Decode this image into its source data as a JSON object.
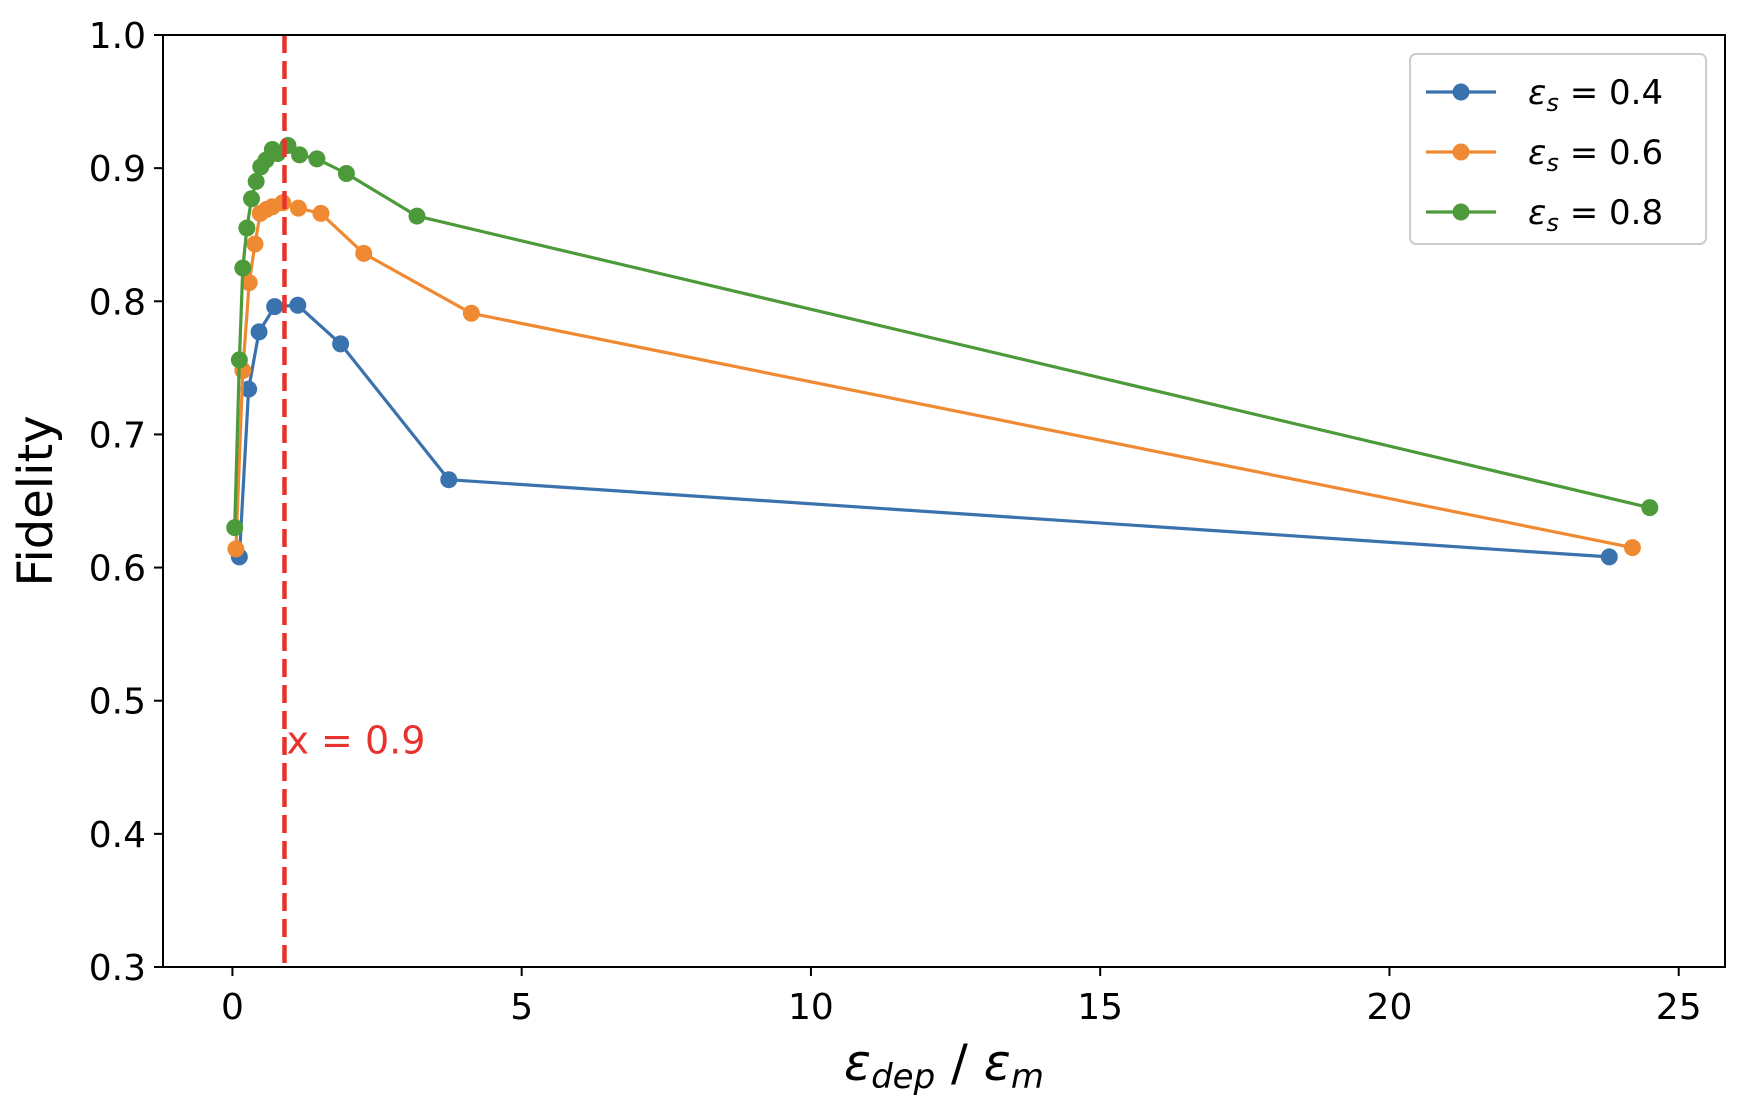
{
  "chart_data": {
    "type": "line",
    "title": "",
    "ylabel": "Fidelity",
    "xlabel": {
      "eps1": "ε",
      "sub1": "dep",
      "sep": " / ",
      "eps2": "ε",
      "sub2": "m"
    },
    "xlim": [
      -1.2,
      25.8
    ],
    "ylim": [
      0.3,
      1.0
    ],
    "xticks": [
      0,
      5,
      10,
      15,
      20,
      25
    ],
    "xtick_labels": [
      "0",
      "5",
      "10",
      "15",
      "20",
      "25"
    ],
    "yticks": [
      0.3,
      0.4,
      0.5,
      0.6,
      0.7,
      0.8,
      0.9,
      1.0
    ],
    "ytick_labels": [
      "0.3",
      "0.4",
      "0.5",
      "0.6",
      "0.7",
      "0.8",
      "0.9",
      "1.0"
    ],
    "grid": false,
    "legend_position": "top-right",
    "vline": {
      "x": 0.9,
      "color": "#e8322d",
      "label": "x = 0.9",
      "label_y": 0.47
    },
    "series": [
      {
        "name_sym": "ε",
        "name_sub": "s",
        "name_rest": " = 0.4",
        "color": "#3a72ad",
        "x": [
          0.12,
          0.28,
          0.46,
          0.73,
          1.13,
          1.87,
          3.74,
          23.8
        ],
        "y": [
          0.608,
          0.734,
          0.777,
          0.796,
          0.797,
          0.768,
          0.666,
          0.608
        ]
      },
      {
        "name_sym": "ε",
        "name_sub": "s",
        "name_rest": " = 0.6",
        "color": "#f08a32",
        "x": [
          0.06,
          0.18,
          0.29,
          0.39,
          0.48,
          0.59,
          0.69,
          0.87,
          1.14,
          1.53,
          2.27,
          4.13,
          24.2
        ],
        "y": [
          0.614,
          0.748,
          0.814,
          0.843,
          0.866,
          0.869,
          0.871,
          0.874,
          0.87,
          0.866,
          0.836,
          0.791,
          0.615
        ]
      },
      {
        "name_sym": "ε",
        "name_sub": "s",
        "name_rest": " = 0.8",
        "color": "#4d9a3a",
        "x": [
          0.04,
          0.12,
          0.18,
          0.25,
          0.33,
          0.41,
          0.49,
          0.58,
          0.69,
          0.78,
          0.96,
          1.16,
          1.46,
          1.97,
          3.19,
          24.5
        ],
        "y": [
          0.63,
          0.756,
          0.825,
          0.855,
          0.877,
          0.89,
          0.901,
          0.906,
          0.914,
          0.911,
          0.917,
          0.91,
          0.907,
          0.896,
          0.864,
          0.645
        ]
      }
    ]
  }
}
